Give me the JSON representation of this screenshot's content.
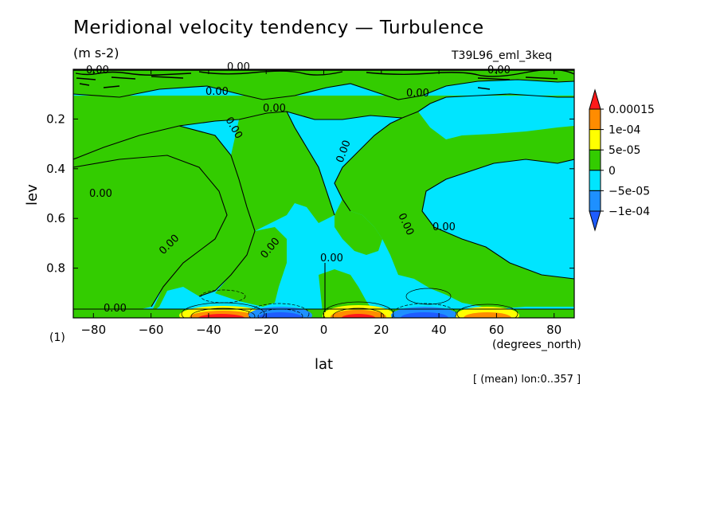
{
  "chart_data": {
    "type": "heatmap",
    "subtype": "filled-contour",
    "title": "Meridional velocity tendency — Turbulence",
    "units": "(m s-2)",
    "run_name": "T39L96_eml_3keq",
    "xlabel": "lat",
    "x_units": "(degrees_north)",
    "ylabel": "lev",
    "note": "(1)",
    "region": "[ (mean) lon:0..357 ]",
    "xlim": [
      -87,
      87
    ],
    "ylim": [
      1.0,
      0.0
    ],
    "x_ticks": [
      -80,
      -60,
      -40,
      -20,
      0,
      20,
      40,
      60,
      80
    ],
    "x_tick_labels": [
      "−80",
      "−60",
      "−40",
      "−20",
      "0",
      "20",
      "40",
      "60",
      "80"
    ],
    "y_ticks": [
      0.2,
      0.4,
      0.6,
      0.8
    ],
    "y_tick_labels": [
      "0.2",
      "0.4",
      "0.6",
      "0.8"
    ],
    "contour_label": "0.00",
    "colorbar": {
      "boundaries": [
        -0.0001,
        -5e-05,
        0,
        5e-05,
        0.0001,
        0.00015
      ],
      "labels": [
        "0.00015",
        "1e-04",
        "5e-05",
        "0",
        "−5e-05",
        "−1e-04"
      ],
      "colors": {
        "gt_0.00015": "#ff1a1a",
        "0.0001_0.00015": "#ff8c00",
        "0.00005_0.0001": "#ffff00",
        "0_0.00005": "#33cc00",
        "-0.00005_0": "#00e5ff",
        "-0.0001_-0.00005": "#1e90ff",
        "lt_-0.0001": "#1e5cff"
      }
    },
    "features": [
      {
        "lat": -35,
        "lev": 0.98,
        "sign": "positive",
        "max_band": "gt_0.00015"
      },
      {
        "lat": -15,
        "lev": 0.98,
        "sign": "negative",
        "max_band": "lt_-0.0001"
      },
      {
        "lat": 12,
        "lev": 0.98,
        "sign": "positive",
        "max_band": "gt_0.00015"
      },
      {
        "lat": 35,
        "lev": 0.98,
        "sign": "negative",
        "max_band": "lt_-0.0001"
      },
      {
        "lat": 57,
        "lev": 0.98,
        "sign": "positive",
        "max_band": "0.0001_0.00015"
      }
    ]
  }
}
